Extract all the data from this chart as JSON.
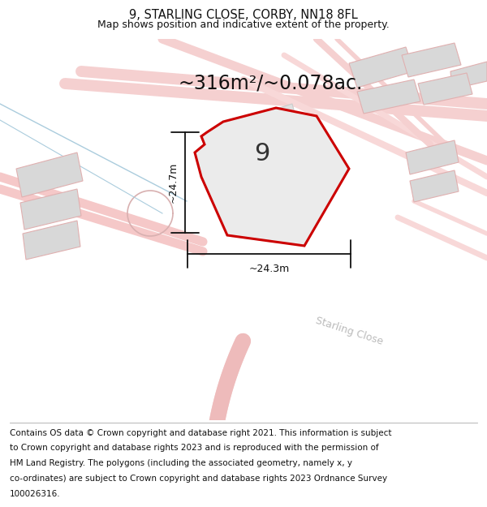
{
  "title": "9, STARLING CLOSE, CORBY, NN18 8FL",
  "subtitle": "Map shows position and indicative extent of the property.",
  "area_text": "~316m²/~0.078ac.",
  "width_label": "~24.3m",
  "height_label": "~24.7m",
  "number_label": "9",
  "street_label": "Starling Close",
  "footer_lines": [
    "Contains OS data © Crown copyright and database right 2021. This information is subject",
    "to Crown copyright and database rights 2023 and is reproduced with the permission of",
    "HM Land Registry. The polygons (including the associated geometry, namely x, y",
    "co-ordinates) are subject to Crown copyright and database rights 2023 Ordnance Survey",
    "100026316."
  ],
  "map_bg": "#ffffff",
  "road_color": "#f2b8b8",
  "road_outline": "#f0c0c0",
  "building_fill": "#d8d8d8",
  "building_edge": "#e0b0b0",
  "plot_fill": "#ebebeb",
  "plot_edge": "#cc0000",
  "blue_line": "#aaccdd",
  "title_fontsize": 10.5,
  "subtitle_fontsize": 9,
  "area_fontsize": 17,
  "label_fontsize": 9,
  "street_fontsize": 9,
  "footer_fontsize": 7.5
}
